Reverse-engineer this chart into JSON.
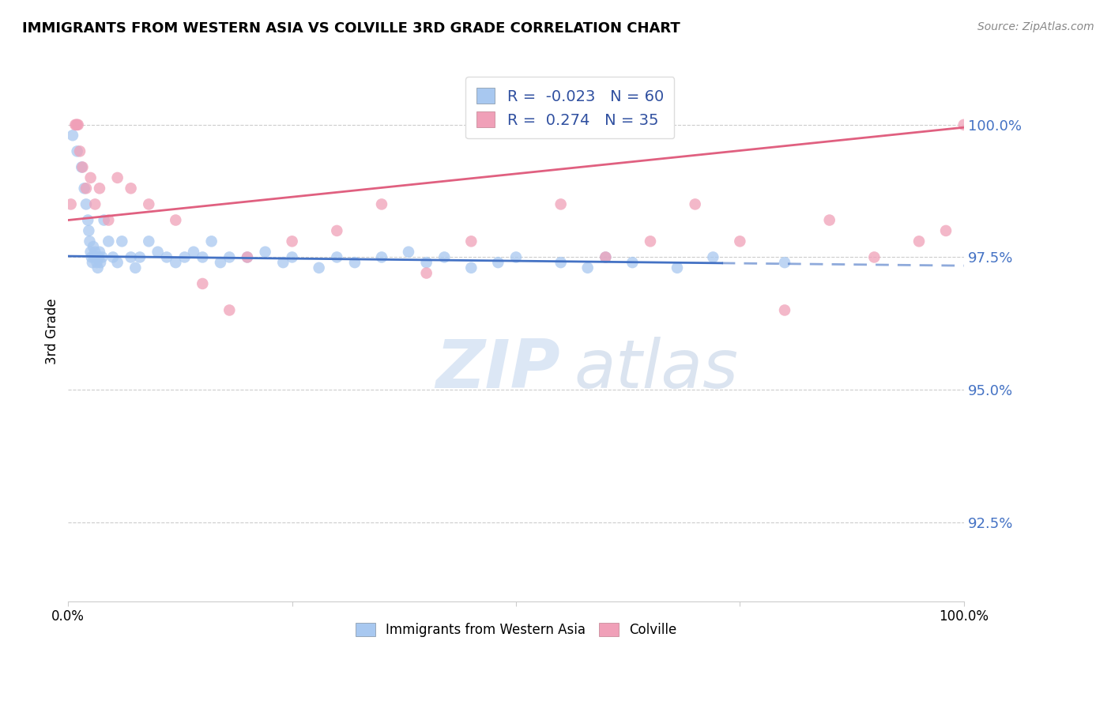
{
  "title": "IMMIGRANTS FROM WESTERN ASIA VS COLVILLE 3RD GRADE CORRELATION CHART",
  "source": "Source: ZipAtlas.com",
  "ylabel": "3rd Grade",
  "ylabel_right_ticks": [
    92.5,
    95.0,
    97.5,
    100.0
  ],
  "ylabel_right_labels": [
    "92.5%",
    "95.0%",
    "97.5%",
    "100.0%"
  ],
  "legend_label_blue": "Immigrants from Western Asia",
  "legend_label_pink": "Colville",
  "r_blue": -0.023,
  "n_blue": 60,
  "r_pink": 0.274,
  "n_pink": 35,
  "blue_color": "#A8C8F0",
  "pink_color": "#F0A0B8",
  "blue_line_color": "#4472C4",
  "pink_line_color": "#E06080",
  "watermark_zip": "ZIP",
  "watermark_atlas": "atlas",
  "blue_x": [
    0.5,
    1.0,
    1.5,
    1.8,
    2.0,
    2.2,
    2.3,
    2.4,
    2.5,
    2.6,
    2.7,
    2.8,
    2.9,
    3.0,
    3.1,
    3.2,
    3.3,
    3.4,
    3.5,
    3.6,
    3.8,
    4.0,
    4.5,
    5.0,
    5.5,
    6.0,
    7.0,
    7.5,
    8.0,
    9.0,
    10.0,
    11.0,
    12.0,
    13.0,
    14.0,
    15.0,
    16.0,
    17.0,
    18.0,
    20.0,
    22.0,
    24.0,
    25.0,
    28.0,
    30.0,
    32.0,
    35.0,
    38.0,
    40.0,
    42.0,
    45.0,
    48.0,
    50.0,
    55.0,
    58.0,
    60.0,
    63.0,
    68.0,
    72.0,
    80.0
  ],
  "blue_y": [
    99.8,
    99.5,
    99.2,
    98.8,
    98.5,
    98.2,
    98.0,
    97.8,
    97.6,
    97.5,
    97.4,
    97.7,
    97.5,
    97.6,
    97.5,
    97.4,
    97.3,
    97.5,
    97.6,
    97.4,
    97.5,
    98.2,
    97.8,
    97.5,
    97.4,
    97.8,
    97.5,
    97.3,
    97.5,
    97.8,
    97.6,
    97.5,
    97.4,
    97.5,
    97.6,
    97.5,
    97.8,
    97.4,
    97.5,
    97.5,
    97.6,
    97.4,
    97.5,
    97.3,
    97.5,
    97.4,
    97.5,
    97.6,
    97.4,
    97.5,
    97.3,
    97.4,
    97.5,
    97.4,
    97.3,
    97.5,
    97.4,
    97.3,
    97.5,
    97.4
  ],
  "pink_x": [
    0.3,
    0.8,
    0.9,
    1.0,
    1.1,
    1.3,
    1.6,
    2.0,
    2.5,
    3.0,
    3.5,
    4.5,
    5.5,
    7.0,
    9.0,
    12.0,
    15.0,
    18.0,
    20.0,
    25.0,
    30.0,
    35.0,
    40.0,
    45.0,
    55.0,
    60.0,
    65.0,
    70.0,
    75.0,
    80.0,
    85.0,
    90.0,
    95.0,
    98.0,
    100.0
  ],
  "pink_y": [
    98.5,
    100.0,
    100.0,
    100.0,
    100.0,
    99.5,
    99.2,
    98.8,
    99.0,
    98.5,
    98.8,
    98.2,
    99.0,
    98.8,
    98.5,
    98.2,
    97.0,
    96.5,
    97.5,
    97.8,
    98.0,
    98.5,
    97.2,
    97.8,
    98.5,
    97.5,
    97.8,
    98.5,
    97.8,
    96.5,
    98.2,
    97.5,
    97.8,
    98.0,
    100.0
  ],
  "xmin": 0.0,
  "xmax": 100.0,
  "ymin": 91.0,
  "ymax": 101.2,
  "blue_trend_y_start": 97.52,
  "blue_trend_y_end": 97.34,
  "pink_trend_y_start": 98.2,
  "pink_trend_y_end": 99.95,
  "blue_solid_end": 73.0
}
